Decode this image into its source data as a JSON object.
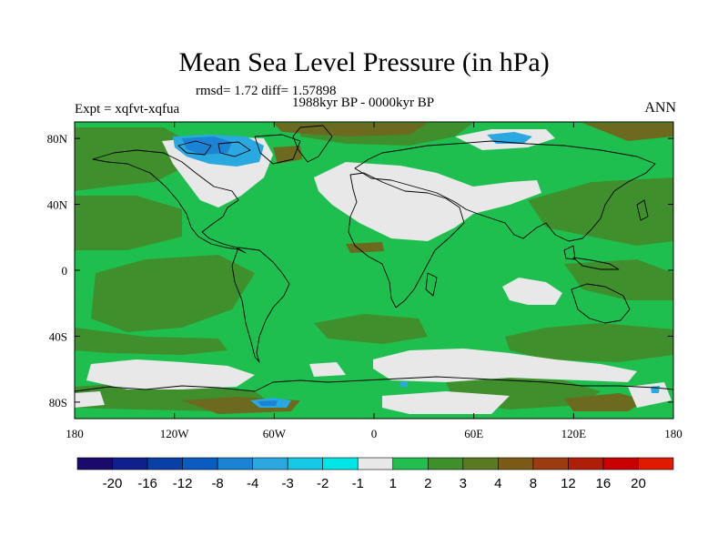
{
  "title": "Mean Sea Level Pressure (in hPa)",
  "stats_line": "rmsd= 1.72 diff= 1.57898",
  "experiment_label": "Expt = xqfvt-xqfua",
  "period_label": "1988kyr BP - 0000kyr BP",
  "season_label": "ANN",
  "map": {
    "lon_range": [
      -180,
      180
    ],
    "lat_range": [
      -90,
      90
    ],
    "x_tick_labels": [
      "180",
      "120W",
      "60W",
      "0",
      "60E",
      "120E",
      "180"
    ],
    "y_tick_labels": [
      "80N",
      "40N",
      "0",
      "40S",
      "80S"
    ],
    "background_class_color": "#1fbf4f"
  },
  "colorbar": {
    "level_labels": [
      "-20",
      "-16",
      "-12",
      "-8",
      "-4",
      "-3",
      "-2",
      "-1",
      "1",
      "2",
      "3",
      "4",
      "8",
      "12",
      "16",
      "20"
    ],
    "colors": [
      "#1a0a6b",
      "#0f1f8c",
      "#0a3fa8",
      "#0a5cc0",
      "#1a83d4",
      "#2aa8e0",
      "#14c8e6",
      "#00e6e6",
      "#e8e8e8",
      "#22bf50",
      "#3f8f2c",
      "#5a7a22",
      "#7a5a16",
      "#9a3c10",
      "#b01e08",
      "#c80000",
      "#e01a00"
    ]
  }
}
